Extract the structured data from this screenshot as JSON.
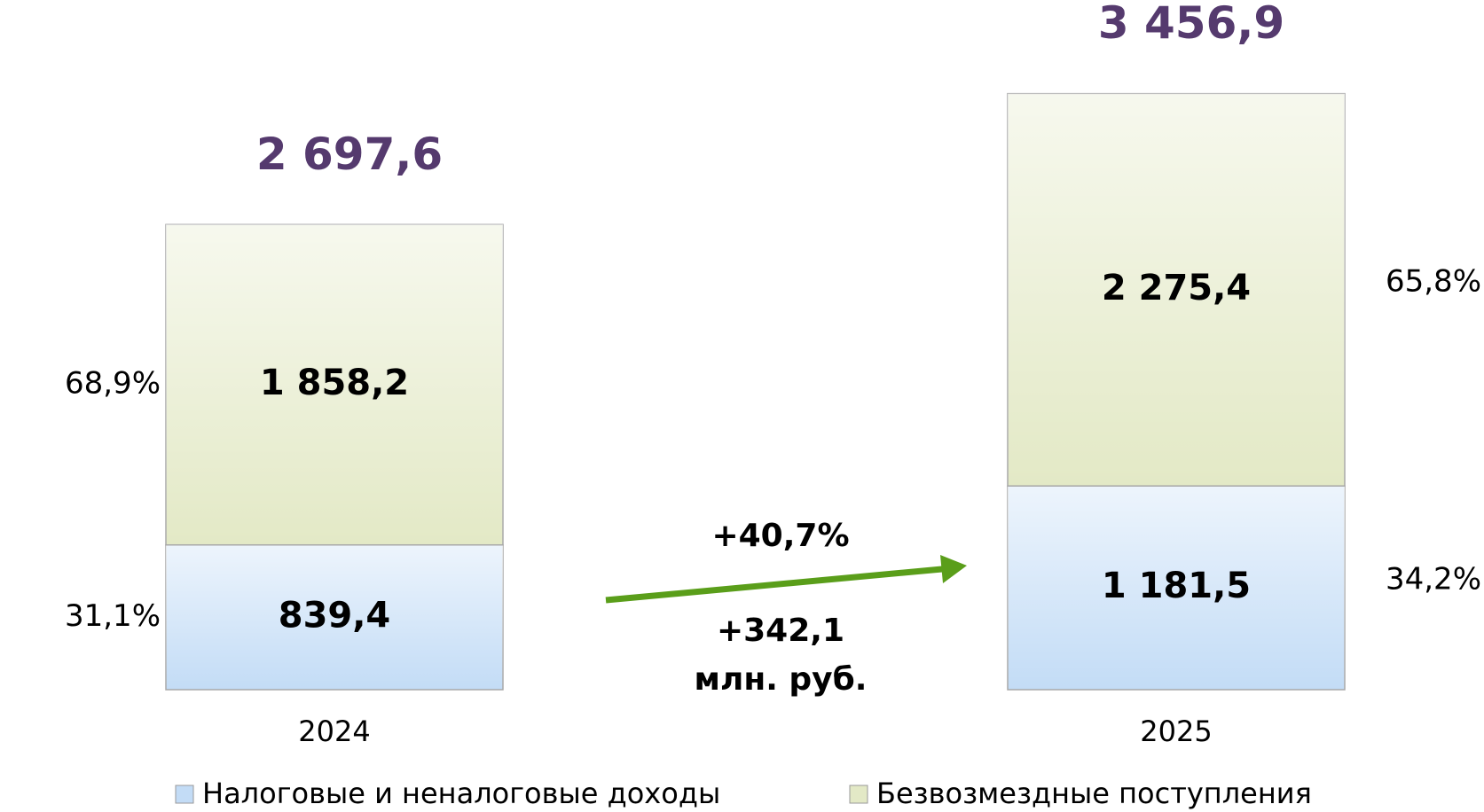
{
  "chart_data": {
    "type": "stacked_bar",
    "categories": [
      "2024",
      "2025"
    ],
    "series": [
      {
        "name": "Налоговые и неналоговые доходы",
        "color": "#c3dcf6",
        "values": [
          839.4,
          1181.5
        ],
        "value_labels": [
          "839,4",
          "1 181,5"
        ],
        "shares": [
          31.1,
          34.2
        ],
        "share_labels": [
          "31,1%",
          "34,2%"
        ]
      },
      {
        "name": "Безвозмездные поступления",
        "color": "#e3e9c6",
        "values": [
          1858.2,
          2275.4
        ],
        "value_labels": [
          "1 858,2",
          "2 275,4"
        ],
        "shares": [
          68.9,
          65.8
        ],
        "share_labels": [
          "68,9%",
          "65,8%"
        ]
      }
    ],
    "totals": [
      2697.6,
      3456.9
    ],
    "total_labels": [
      "2 697,6",
      "3 456,9"
    ],
    "annotations": [
      "+40,7%",
      "+342,1",
      "млн. руб."
    ],
    "arrow_color": "#5a9e1a",
    "ylim": [
      0,
      4000
    ]
  }
}
